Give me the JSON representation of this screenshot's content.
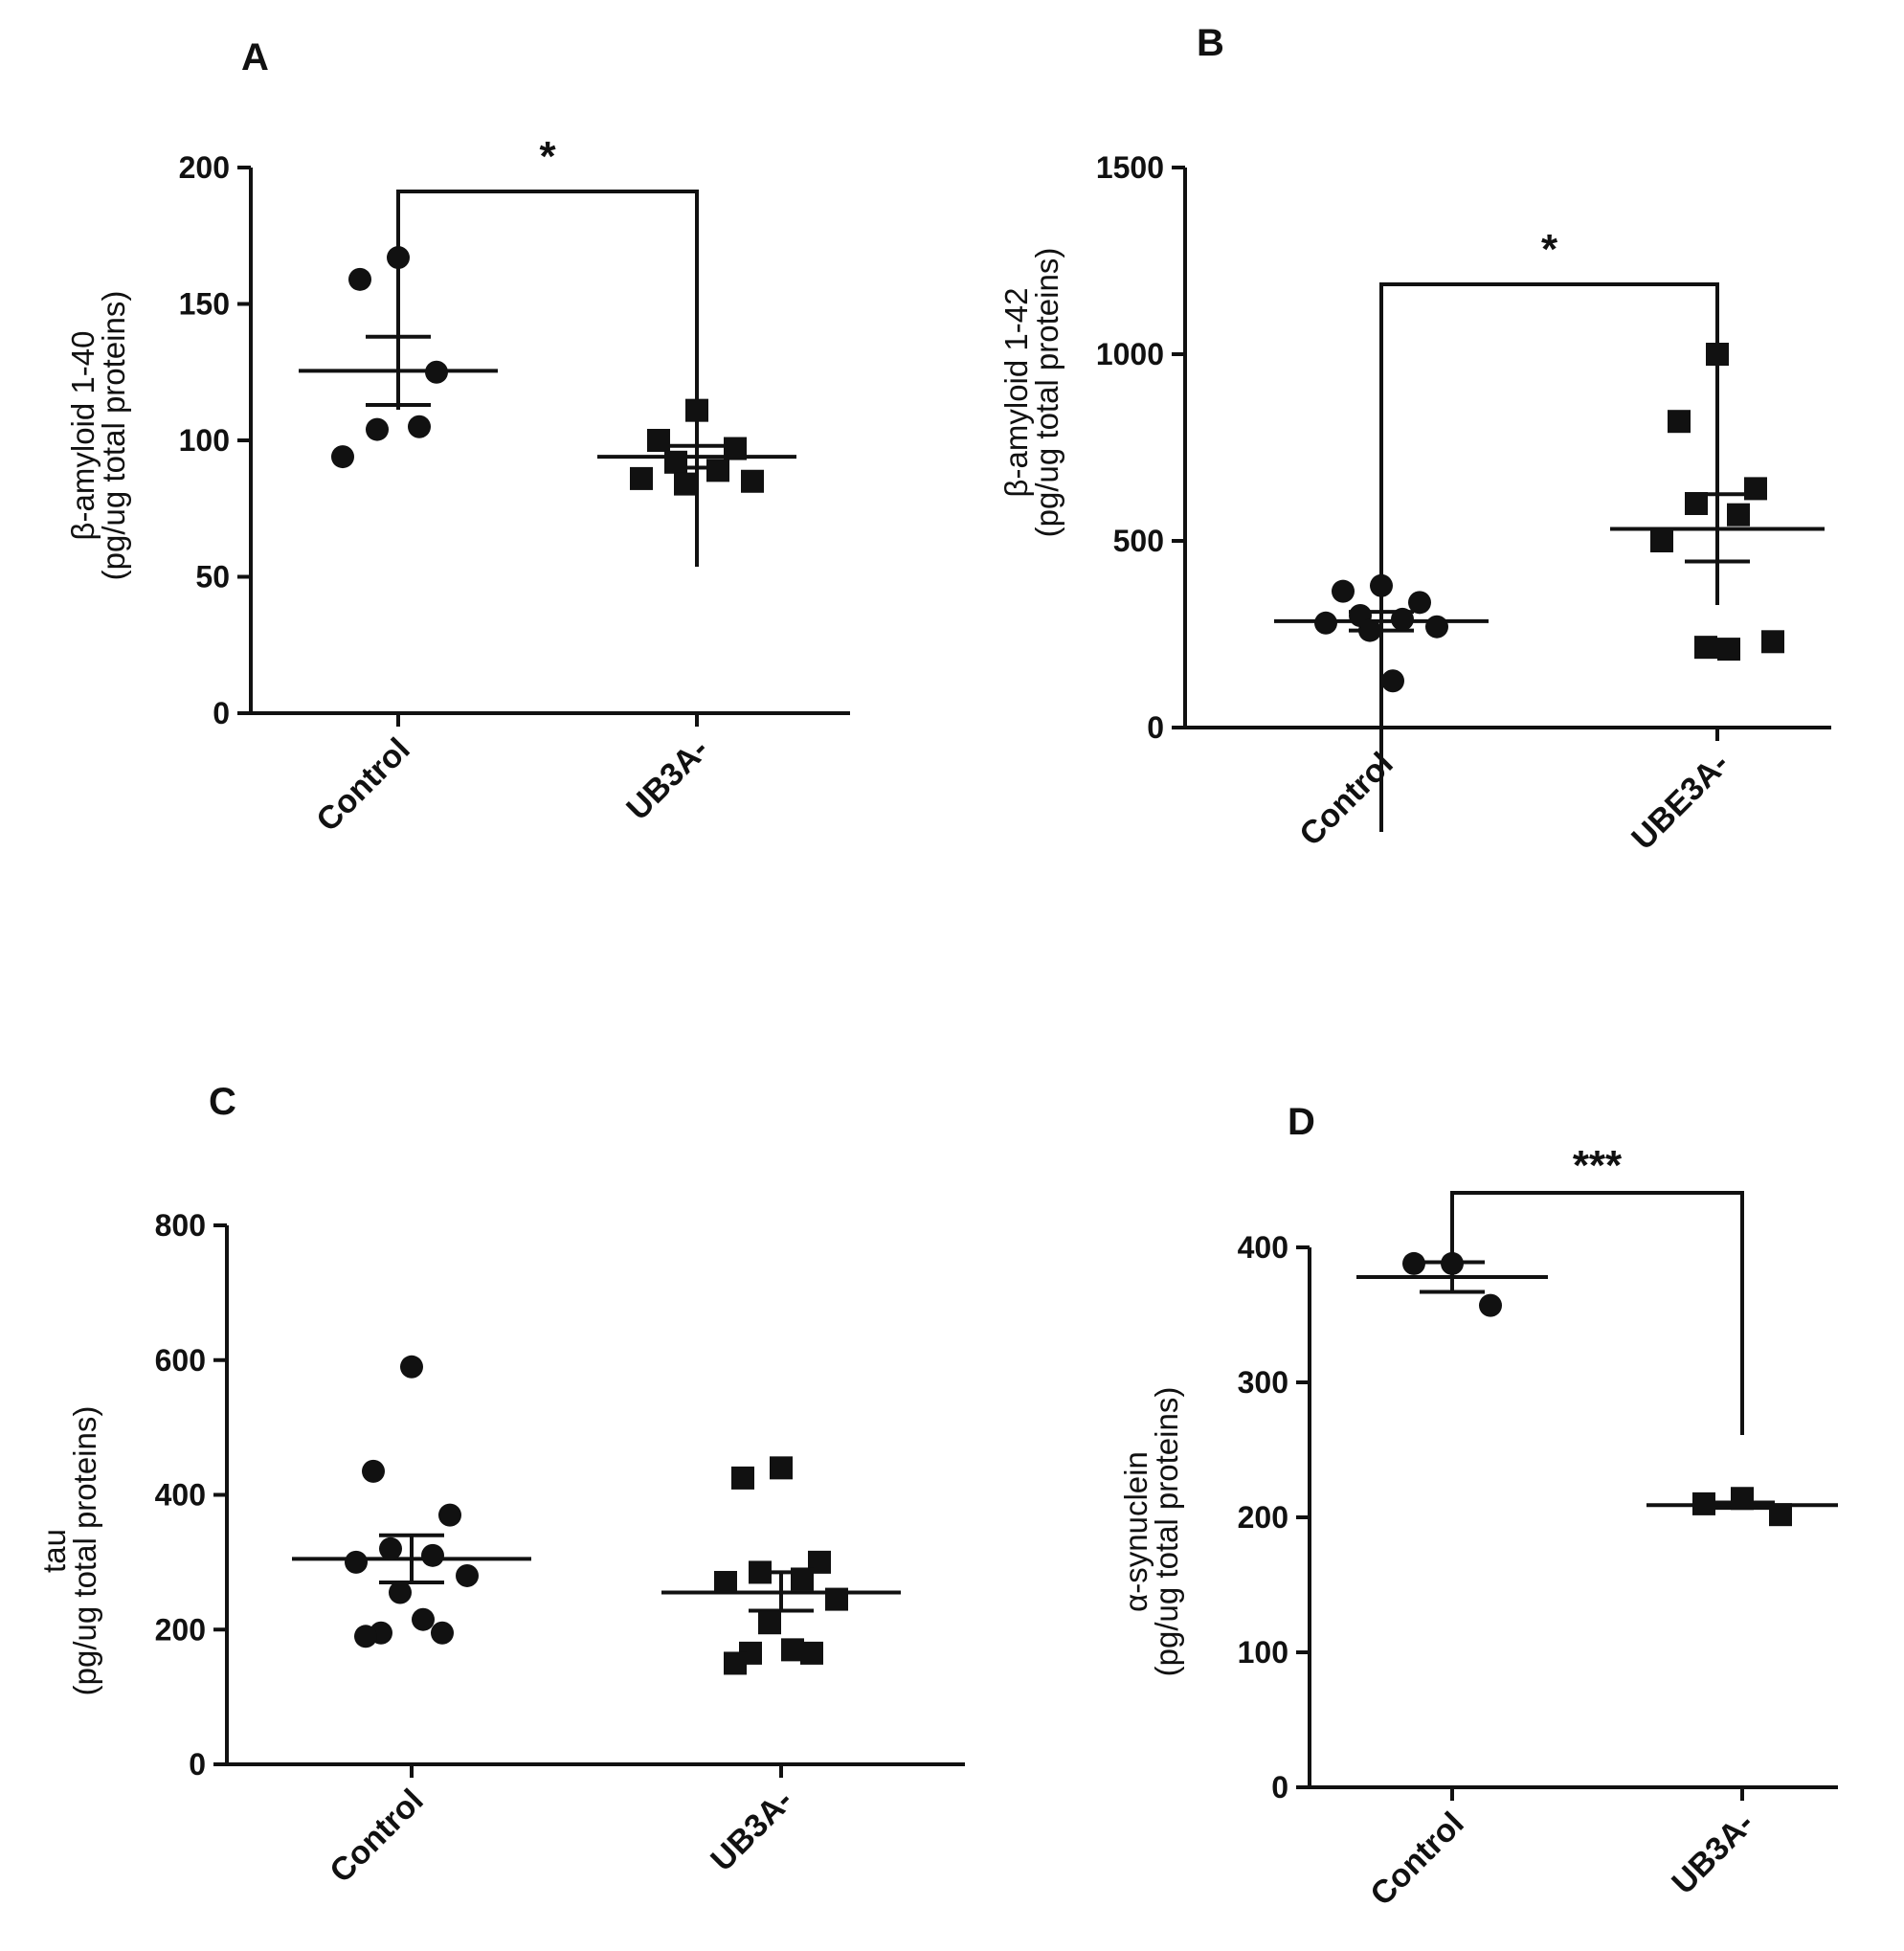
{
  "chart_data": [
    {
      "panel": "A",
      "type": "scatter",
      "ylabel_line1": "β-amyloid 1-40",
      "ylabel_line2": "(pg/ug total proteins)",
      "ylim": [
        0,
        200
      ],
      "yticks": [
        0,
        50,
        100,
        150,
        200
      ],
      "categories": [
        "Control",
        "UB3A-"
      ],
      "series": [
        {
          "name": "Control",
          "marker": "circle",
          "points": [
            167,
            159,
            125,
            104,
            105,
            94
          ],
          "mean": 125.5,
          "sem_low": 113,
          "sem_high": 138
        },
        {
          "name": "UB3A-",
          "marker": "square",
          "points": [
            111,
            100,
            97,
            92,
            89,
            86,
            85,
            84
          ],
          "mean": 94,
          "sem_low": 90,
          "sem_high": 98
        }
      ],
      "significance": "*"
    },
    {
      "panel": "B",
      "type": "scatter",
      "ylabel_line1": "β-amyloid 1-42",
      "ylabel_line2": "(pg/ug total proteins)",
      "ylim": [
        0,
        1500
      ],
      "yticks": [
        0,
        500,
        1000,
        1500
      ],
      "categories": [
        "Control",
        "UBE3A-"
      ],
      "series": [
        {
          "name": "Control",
          "marker": "circle",
          "points": [
            380,
            365,
            335,
            300,
            290,
            280,
            270,
            260,
            125
          ],
          "mean": 285,
          "sem_low": 260,
          "sem_high": 310
        },
        {
          "name": "UBE3A-",
          "marker": "square",
          "points": [
            1000,
            820,
            640,
            600,
            570,
            500,
            230,
            215,
            210
          ],
          "mean": 532,
          "sem_low": 445,
          "sem_high": 625
        }
      ],
      "significance": "*"
    },
    {
      "panel": "C",
      "type": "scatter",
      "ylabel_line1": "tau",
      "ylabel_line2": "(pg/ug total proteins)",
      "ylim": [
        0,
        800
      ],
      "yticks": [
        0,
        200,
        400,
        600,
        800
      ],
      "categories": [
        "Control",
        "UB3A-"
      ],
      "series": [
        {
          "name": "Control",
          "marker": "circle",
          "points": [
            590,
            435,
            370,
            320,
            310,
            300,
            280,
            255,
            215,
            195,
            195,
            190
          ],
          "mean": 305,
          "sem_low": 270,
          "sem_high": 340
        },
        {
          "name": "UB3A-",
          "marker": "square",
          "points": [
            440,
            425,
            300,
            285,
            275,
            270,
            245,
            210,
            170,
            165,
            165,
            150
          ],
          "mean": 255,
          "sem_low": 228,
          "sem_high": 285
        }
      ],
      "significance": ""
    },
    {
      "panel": "D",
      "type": "scatter",
      "ylabel_line1": "α-synuclein",
      "ylabel_line2": "(pg/ug total proteins)",
      "ylim": [
        0,
        400
      ],
      "yticks": [
        0,
        100,
        200,
        300,
        400
      ],
      "categories": [
        "Control",
        "UB3A-"
      ],
      "series": [
        {
          "name": "Control",
          "marker": "circle",
          "points": [
            388,
            388,
            357
          ],
          "mean": 378,
          "sem_low": 367,
          "sem_high": 389
        },
        {
          "name": "UB3A-",
          "marker": "square",
          "points": [
            214,
            210,
            202
          ],
          "mean": 209,
          "sem_low": 207,
          "sem_high": 211
        }
      ],
      "significance": "***"
    }
  ]
}
